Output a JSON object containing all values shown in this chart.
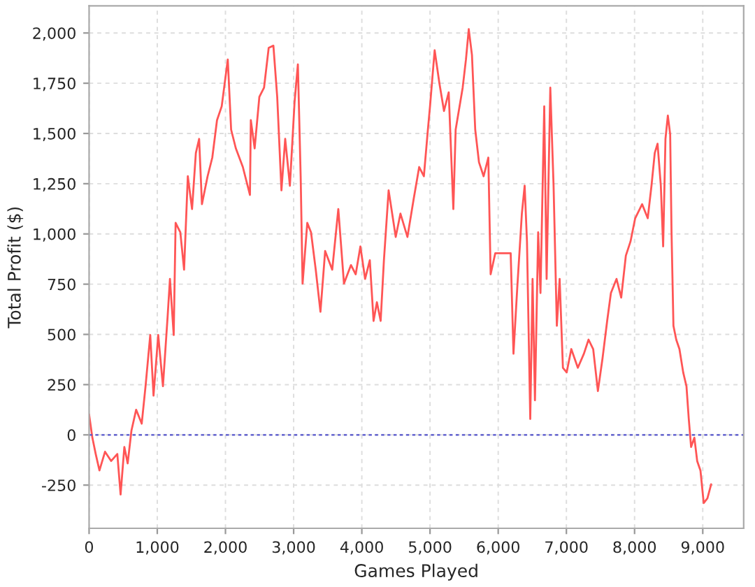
{
  "chart_data": {
    "type": "line",
    "xlabel": "Games Played",
    "ylabel": "Total Profit ($)",
    "x": [
      0,
      48,
      97,
      152,
      234,
      324,
      414,
      462,
      517,
      566,
      621,
      690,
      772,
      828,
      897,
      945,
      1014,
      1083,
      1152,
      1186,
      1241,
      1269,
      1338,
      1393,
      1448,
      1510,
      1566,
      1614,
      1655,
      1738,
      1807,
      1876,
      1945,
      2034,
      2083,
      2152,
      2255,
      2359,
      2372,
      2428,
      2497,
      2566,
      2634,
      2703,
      2759,
      2821,
      2876,
      2945,
      3014,
      3062,
      3103,
      3131,
      3200,
      3255,
      3324,
      3393,
      3462,
      3566,
      3655,
      3738,
      3841,
      3910,
      3979,
      4048,
      4117,
      4172,
      4221,
      4276,
      4324,
      4393,
      4497,
      4566,
      4669,
      4759,
      4841,
      4910,
      4966,
      5000,
      5068,
      5137,
      5205,
      5274,
      5342,
      5376,
      5479,
      5527,
      5568,
      5615,
      5663,
      5718,
      5786,
      5855,
      5889,
      5957,
      6060,
      6183,
      6224,
      6279,
      6347,
      6388,
      6422,
      6470,
      6504,
      6539,
      6586,
      6620,
      6675,
      6710,
      6764,
      6812,
      6860,
      6901,
      6949,
      7004,
      7072,
      7168,
      7257,
      7325,
      7393,
      7462,
      7530,
      7598,
      7653,
      7735,
      7804,
      7872,
      7940,
      8009,
      8111,
      8193,
      8248,
      8296,
      8337,
      8385,
      8419,
      8453,
      8488,
      8522,
      8542,
      8570,
      8611,
      8658,
      8713,
      8761,
      8795,
      8829,
      8877,
      8918,
      8966,
      9014,
      9068,
      9123
    ],
    "series": [
      {
        "color": "#ff5555",
        "values": [
          102,
          -14,
          -95,
          -177,
          -84,
          -130,
          -95,
          -297,
          -60,
          -142,
          21,
          125,
          56,
          242,
          497,
          195,
          497,
          242,
          590,
          776,
          497,
          1055,
          1008,
          822,
          1287,
          1124,
          1403,
          1473,
          1148,
          1287,
          1380,
          1566,
          1635,
          1868,
          1519,
          1426,
          1333,
          1194,
          1566,
          1426,
          1682,
          1728,
          1926,
          1937,
          1682,
          1217,
          1473,
          1240,
          1659,
          1844,
          1287,
          753,
          1055,
          1008,
          822,
          613,
          915,
          822,
          1124,
          753,
          845,
          799,
          938,
          776,
          869,
          567,
          660,
          567,
          869,
          1217,
          985,
          1101,
          985,
          1171,
          1333,
          1287,
          1508,
          1635,
          1914,
          1751,
          1612,
          1705,
          1124,
          1519,
          1728,
          1868,
          2019,
          1891,
          1519,
          1357,
          1287,
          1380,
          799,
          904,
          904,
          904,
          404,
          729,
          1101,
          1240,
          962,
          79,
          776,
          172,
          1008,
          706,
          1635,
          776,
          1728,
          1240,
          543,
          776,
          334,
          311,
          427,
          334,
          404,
          474,
          427,
          218,
          381,
          567,
          706,
          776,
          683,
          892,
          962,
          1078,
          1148,
          1078,
          1240,
          1403,
          1449,
          1240,
          938,
          1473,
          1589,
          1496,
          1008,
          543,
          474,
          427,
          311,
          242,
          79,
          -60,
          -14,
          -130,
          -177,
          -339,
          -316,
          -246
        ]
      }
    ],
    "xlim": [
      0,
      9600
    ],
    "ylim": [
      -465,
      2135
    ],
    "xticks": [
      0,
      {
        "value": 1000,
        "label": "1,000"
      },
      {
        "value": 2000,
        "label": "2,000"
      },
      {
        "value": 3000,
        "label": "3,000"
      },
      {
        "value": 4000,
        "label": "4,000"
      },
      {
        "value": 5000,
        "label": "5,000"
      },
      {
        "value": 6000,
        "label": "6,000"
      },
      {
        "value": 7000,
        "label": "7,000"
      },
      {
        "value": 8000,
        "label": "8,000"
      },
      {
        "value": 9000,
        "label": "9,000"
      }
    ],
    "yticks": [
      -250,
      0,
      250,
      500,
      750,
      {
        "value": 1000,
        "label": "1,000"
      },
      {
        "value": 1250,
        "label": "1,250"
      },
      {
        "value": 1500,
        "label": "1,500"
      },
      {
        "value": 1750,
        "label": "1,750"
      },
      {
        "value": 2000,
        "label": "2,000"
      }
    ],
    "grid": true,
    "marker": "none",
    "line_style": "solid",
    "ref_lines": [
      {
        "axis": "y",
        "value": 0,
        "color": "#5555cc",
        "line_style": "dashed"
      }
    ]
  }
}
